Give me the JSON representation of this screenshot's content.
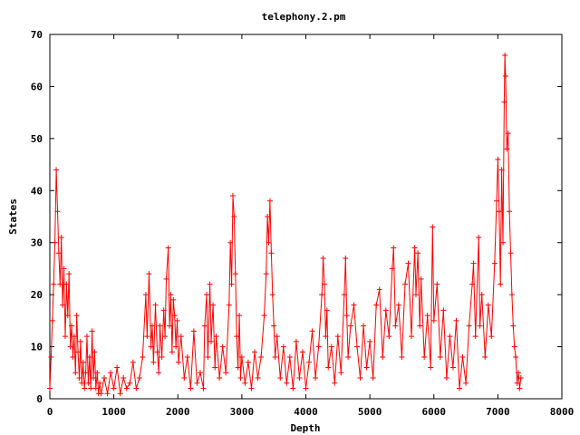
{
  "chart_data": {
    "type": "line",
    "title": "telephony.2.pm",
    "xlabel": "Depth",
    "ylabel": "States",
    "xlim": [
      0,
      8000
    ],
    "ylim": [
      0,
      70
    ],
    "x_ticks": [
      "0",
      "1000",
      "2000",
      "3000",
      "4000",
      "5000",
      "6000",
      "7000",
      "8000"
    ],
    "y_ticks": [
      "0",
      "10",
      "20",
      "30",
      "40",
      "50",
      "60",
      "70"
    ],
    "grid": false,
    "legend": "none",
    "marker": "plus",
    "series": [
      {
        "color": "#ff0000",
        "points": [
          [
            0,
            2
          ],
          [
            20,
            8
          ],
          [
            40,
            15
          ],
          [
            60,
            22
          ],
          [
            80,
            30
          ],
          [
            100,
            44
          ],
          [
            120,
            36
          ],
          [
            140,
            28
          ],
          [
            160,
            22
          ],
          [
            180,
            31
          ],
          [
            200,
            18
          ],
          [
            220,
            25
          ],
          [
            240,
            12
          ],
          [
            260,
            22
          ],
          [
            280,
            16
          ],
          [
            300,
            24
          ],
          [
            320,
            10
          ],
          [
            340,
            14
          ],
          [
            360,
            8
          ],
          [
            380,
            12
          ],
          [
            400,
            5
          ],
          [
            420,
            16
          ],
          [
            440,
            9
          ],
          [
            460,
            4
          ],
          [
            480,
            11
          ],
          [
            500,
            3
          ],
          [
            520,
            7
          ],
          [
            540,
            2
          ],
          [
            560,
            5
          ],
          [
            580,
            12
          ],
          [
            600,
            3
          ],
          [
            620,
            8
          ],
          [
            640,
            2
          ],
          [
            660,
            13
          ],
          [
            680,
            4
          ],
          [
            700,
            9
          ],
          [
            720,
            2
          ],
          [
            740,
            5
          ],
          [
            760,
            1
          ],
          [
            780,
            3
          ],
          [
            800,
            1
          ],
          [
            850,
            4
          ],
          [
            900,
            1
          ],
          [
            950,
            5
          ],
          [
            1000,
            2
          ],
          [
            1050,
            6
          ],
          [
            1100,
            1
          ],
          [
            1150,
            4
          ],
          [
            1200,
            2
          ],
          [
            1250,
            3
          ],
          [
            1300,
            7
          ],
          [
            1350,
            2
          ],
          [
            1400,
            4
          ],
          [
            1450,
            8
          ],
          [
            1500,
            20
          ],
          [
            1520,
            12
          ],
          [
            1550,
            24
          ],
          [
            1580,
            10
          ],
          [
            1600,
            14
          ],
          [
            1620,
            7
          ],
          [
            1650,
            18
          ],
          [
            1680,
            9
          ],
          [
            1700,
            5
          ],
          [
            1720,
            14
          ],
          [
            1750,
            8
          ],
          [
            1780,
            17
          ],
          [
            1800,
            12
          ],
          [
            1820,
            23
          ],
          [
            1850,
            29
          ],
          [
            1870,
            14
          ],
          [
            1890,
            20
          ],
          [
            1910,
            9
          ],
          [
            1930,
            19
          ],
          [
            1950,
            16
          ],
          [
            1970,
            10
          ],
          [
            1990,
            15
          ],
          [
            2010,
            7
          ],
          [
            2050,
            12
          ],
          [
            2100,
            4
          ],
          [
            2150,
            8
          ],
          [
            2200,
            2
          ],
          [
            2250,
            13
          ],
          [
            2300,
            3
          ],
          [
            2350,
            5
          ],
          [
            2400,
            2
          ],
          [
            2420,
            14
          ],
          [
            2450,
            20
          ],
          [
            2470,
            8
          ],
          [
            2500,
            22
          ],
          [
            2520,
            11
          ],
          [
            2550,
            18
          ],
          [
            2580,
            6
          ],
          [
            2600,
            12
          ],
          [
            2650,
            4
          ],
          [
            2700,
            10
          ],
          [
            2750,
            5
          ],
          [
            2800,
            18
          ],
          [
            2820,
            30
          ],
          [
            2840,
            22
          ],
          [
            2860,
            39
          ],
          [
            2880,
            35
          ],
          [
            2900,
            24
          ],
          [
            2920,
            12
          ],
          [
            2940,
            6
          ],
          [
            2960,
            16
          ],
          [
            2980,
            4
          ],
          [
            3000,
            8
          ],
          [
            3050,
            3
          ],
          [
            3100,
            7
          ],
          [
            3150,
            2
          ],
          [
            3200,
            9
          ],
          [
            3250,
            4
          ],
          [
            3300,
            8
          ],
          [
            3350,
            16
          ],
          [
            3380,
            24
          ],
          [
            3400,
            35
          ],
          [
            3420,
            30
          ],
          [
            3440,
            38
          ],
          [
            3460,
            28
          ],
          [
            3480,
            20
          ],
          [
            3500,
            14
          ],
          [
            3520,
            8
          ],
          [
            3550,
            12
          ],
          [
            3600,
            4
          ],
          [
            3650,
            10
          ],
          [
            3700,
            3
          ],
          [
            3750,
            8
          ],
          [
            3800,
            2
          ],
          [
            3850,
            11
          ],
          [
            3900,
            4
          ],
          [
            3950,
            9
          ],
          [
            4000,
            2
          ],
          [
            4050,
            7
          ],
          [
            4100,
            13
          ],
          [
            4150,
            4
          ],
          [
            4200,
            10
          ],
          [
            4250,
            20
          ],
          [
            4270,
            27
          ],
          [
            4290,
            22
          ],
          [
            4310,
            12
          ],
          [
            4330,
            17
          ],
          [
            4350,
            6
          ],
          [
            4400,
            10
          ],
          [
            4450,
            3
          ],
          [
            4500,
            12
          ],
          [
            4550,
            5
          ],
          [
            4600,
            20
          ],
          [
            4620,
            27
          ],
          [
            4640,
            16
          ],
          [
            4660,
            8
          ],
          [
            4700,
            14
          ],
          [
            4750,
            18
          ],
          [
            4800,
            10
          ],
          [
            4850,
            4
          ],
          [
            4900,
            14
          ],
          [
            4950,
            6
          ],
          [
            5000,
            11
          ],
          [
            5050,
            4
          ],
          [
            5100,
            18
          ],
          [
            5150,
            21
          ],
          [
            5200,
            8
          ],
          [
            5250,
            17
          ],
          [
            5300,
            12
          ],
          [
            5350,
            25
          ],
          [
            5370,
            29
          ],
          [
            5400,
            14
          ],
          [
            5450,
            18
          ],
          [
            5500,
            8
          ],
          [
            5550,
            22
          ],
          [
            5600,
            26
          ],
          [
            5650,
            12
          ],
          [
            5700,
            29
          ],
          [
            5720,
            20
          ],
          [
            5750,
            28
          ],
          [
            5780,
            14
          ],
          [
            5800,
            23
          ],
          [
            5850,
            8
          ],
          [
            5900,
            16
          ],
          [
            5950,
            6
          ],
          [
            5980,
            33
          ],
          [
            6000,
            15
          ],
          [
            6050,
            22
          ],
          [
            6100,
            8
          ],
          [
            6150,
            17
          ],
          [
            6200,
            4
          ],
          [
            6250,
            12
          ],
          [
            6300,
            6
          ],
          [
            6350,
            15
          ],
          [
            6400,
            2
          ],
          [
            6450,
            8
          ],
          [
            6500,
            3
          ],
          [
            6550,
            14
          ],
          [
            6600,
            22
          ],
          [
            6620,
            26
          ],
          [
            6650,
            12
          ],
          [
            6700,
            31
          ],
          [
            6720,
            14
          ],
          [
            6750,
            20
          ],
          [
            6800,
            8
          ],
          [
            6850,
            18
          ],
          [
            6900,
            12
          ],
          [
            6950,
            26
          ],
          [
            6980,
            38
          ],
          [
            7000,
            46
          ],
          [
            7020,
            36
          ],
          [
            7040,
            22
          ],
          [
            7060,
            44
          ],
          [
            7080,
            30
          ],
          [
            7100,
            57
          ],
          [
            7110,
            66
          ],
          [
            7120,
            62
          ],
          [
            7140,
            48
          ],
          [
            7160,
            51
          ],
          [
            7180,
            36
          ],
          [
            7200,
            28
          ],
          [
            7220,
            20
          ],
          [
            7240,
            14
          ],
          [
            7260,
            10
          ],
          [
            7280,
            8
          ],
          [
            7300,
            3
          ],
          [
            7320,
            5
          ],
          [
            7340,
            2
          ],
          [
            7360,
            4
          ]
        ]
      }
    ]
  }
}
